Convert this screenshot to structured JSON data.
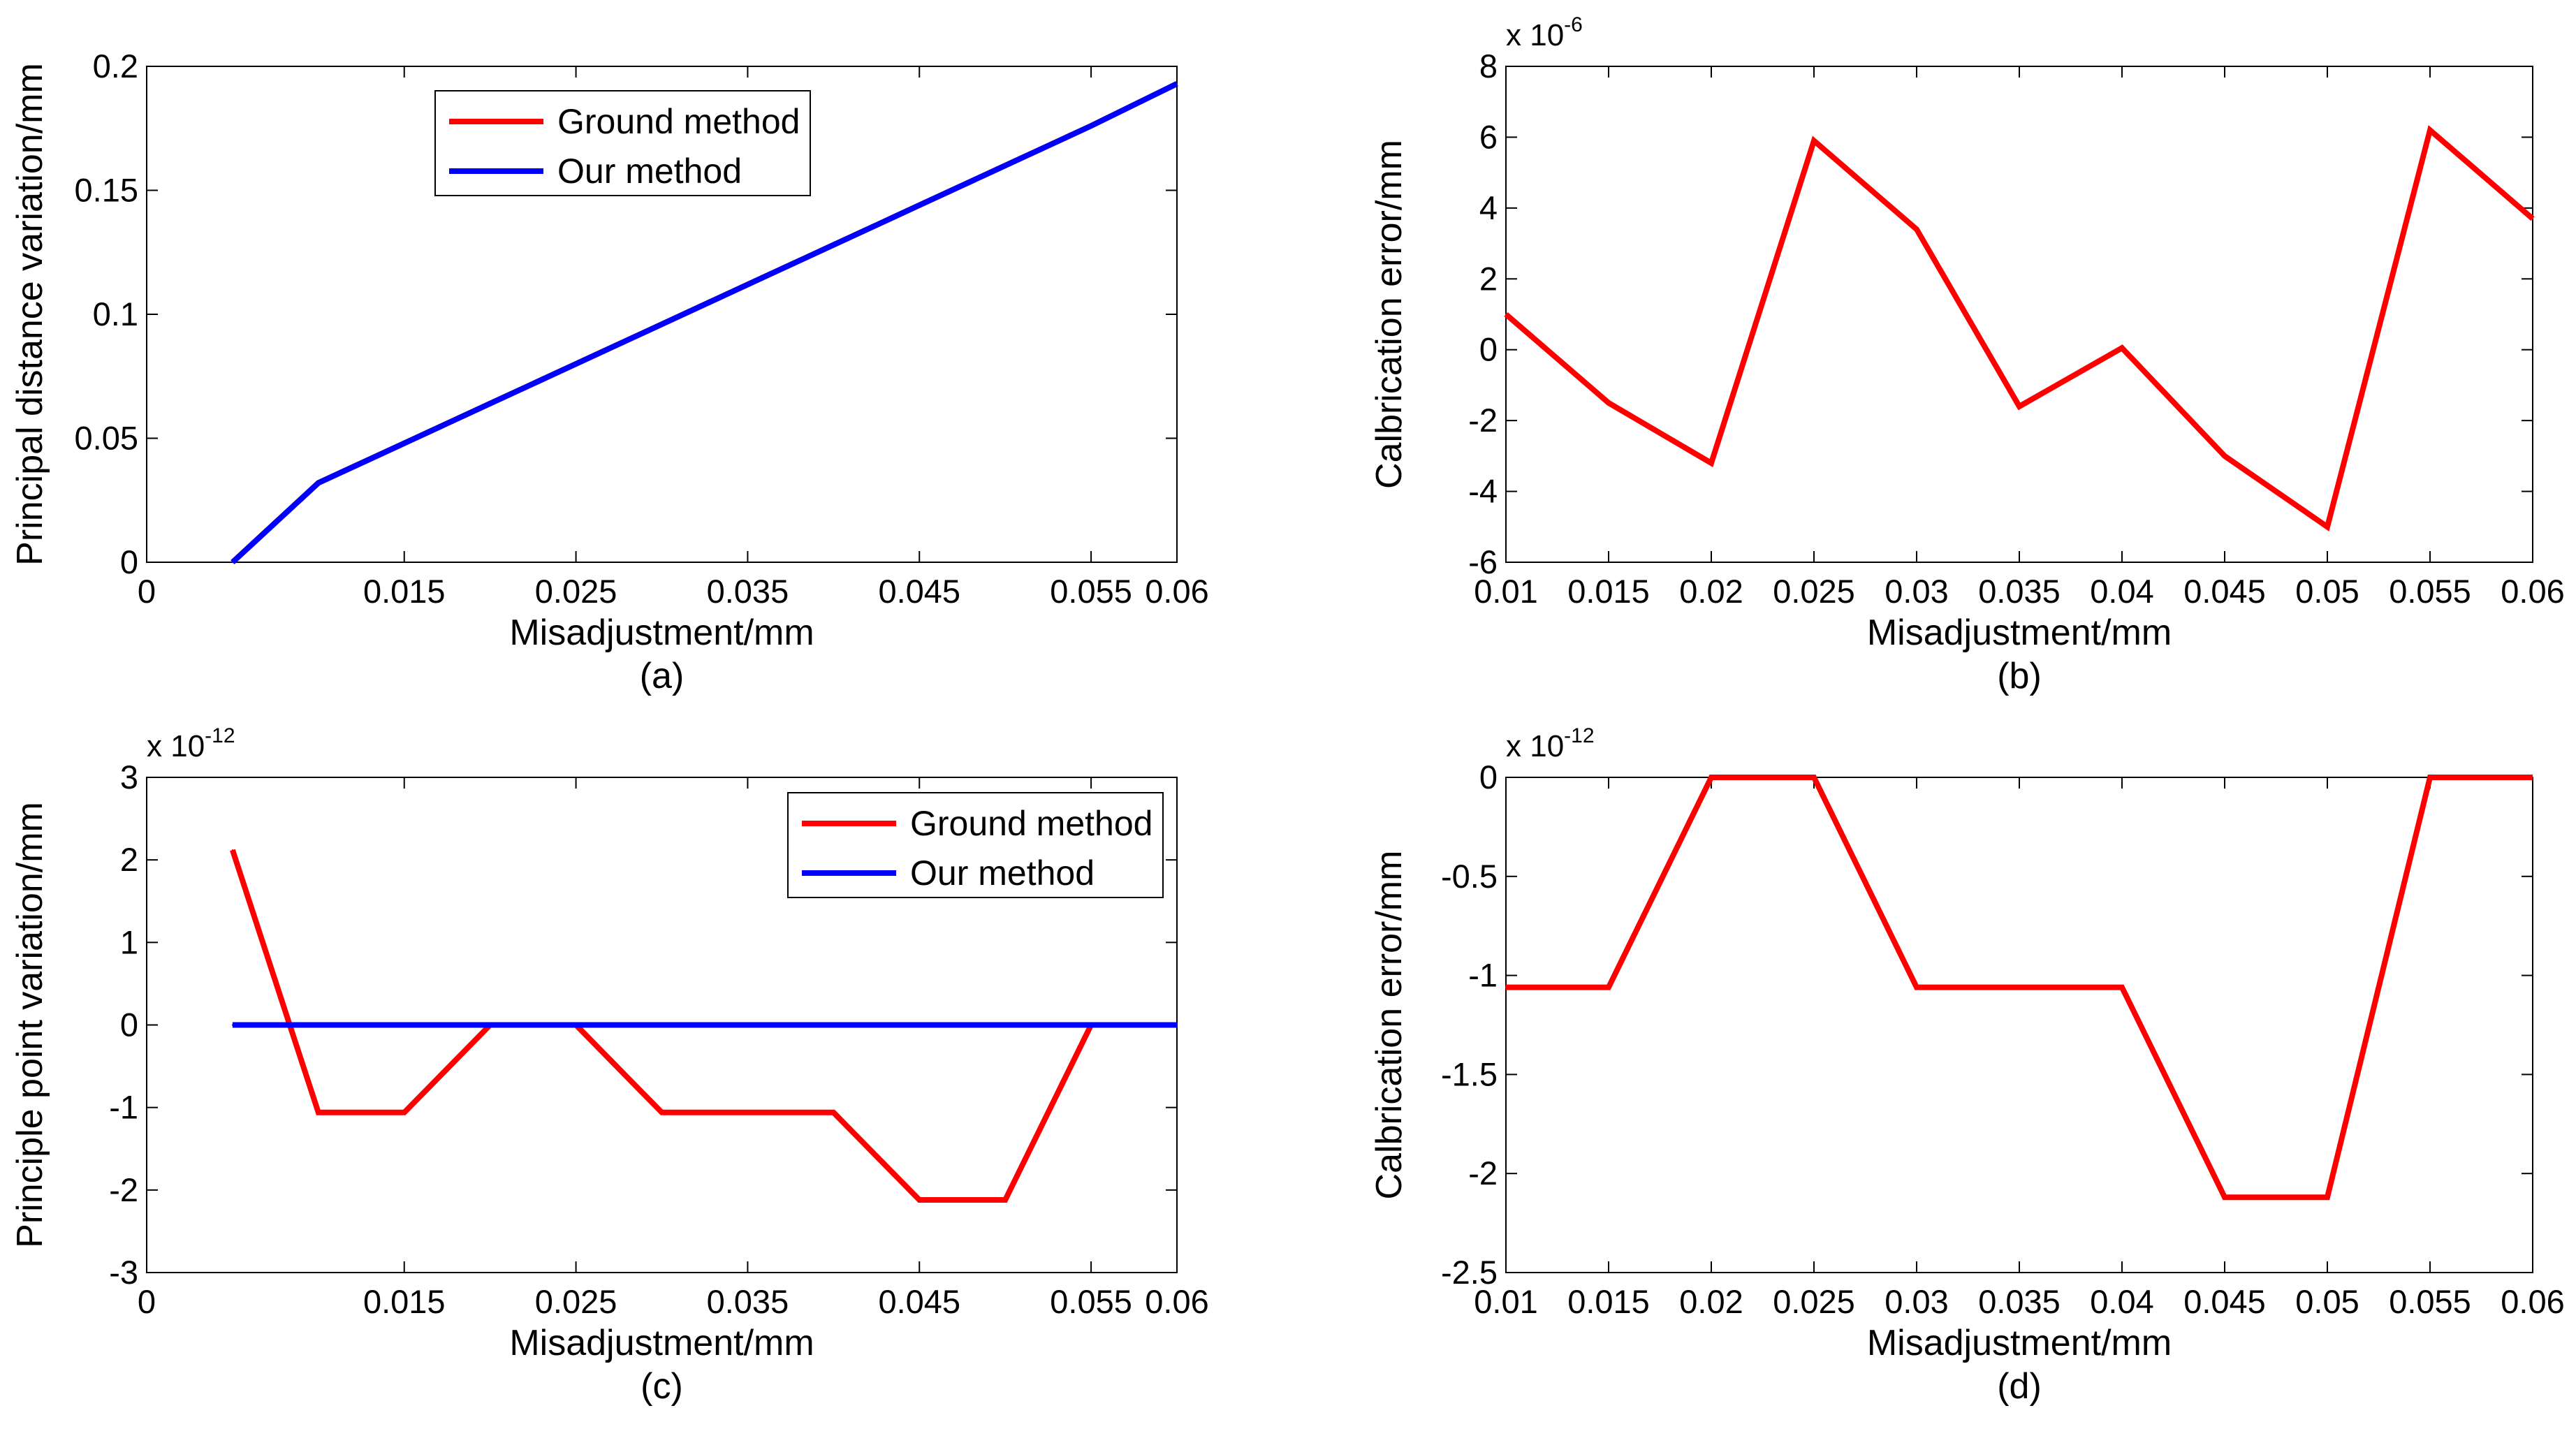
{
  "figure": {
    "panels": [
      "a",
      "b",
      "c",
      "d"
    ]
  },
  "chart_data": [
    {
      "id": "a",
      "type": "line",
      "caption": "(a)",
      "xlabel": "Misadjustment/mm",
      "ylabel": "Principal distance variation/mm",
      "xlim": [
        0,
        0.06
      ],
      "ylim": [
        0,
        0.2
      ],
      "xticks": [
        0,
        0.015,
        0.025,
        0.035,
        0.045,
        0.055,
        0.06
      ],
      "xtick_labels": [
        "0",
        "0.015",
        "0.025",
        "0.035",
        "0.045",
        "0.055",
        "0.06"
      ],
      "yticks": [
        0,
        0.05,
        0.1,
        0.15,
        0.2
      ],
      "ytick_labels": [
        "0",
        "0.05",
        "0.1",
        "0.15",
        "0.2"
      ],
      "exponent": null,
      "legend": {
        "position": "top-center",
        "entries": [
          "Ground method",
          "Our method"
        ]
      },
      "series": [
        {
          "name": "Ground method",
          "color": "#ff0000",
          "x": [
            0.005,
            0.01,
            0.015,
            0.02,
            0.025,
            0.03,
            0.035,
            0.04,
            0.045,
            0.05,
            0.055,
            0.06
          ],
          "y": [
            0,
            0.032,
            0.048,
            0.064,
            0.08,
            0.096,
            0.112,
            0.128,
            0.144,
            0.16,
            0.176,
            0.193
          ]
        },
        {
          "name": "Our method",
          "color": "#0000ff",
          "x": [
            0.005,
            0.01,
            0.015,
            0.02,
            0.025,
            0.03,
            0.035,
            0.04,
            0.045,
            0.05,
            0.055,
            0.06
          ],
          "y": [
            0,
            0.032,
            0.048,
            0.064,
            0.08,
            0.096,
            0.112,
            0.128,
            0.144,
            0.16,
            0.176,
            0.193
          ]
        }
      ]
    },
    {
      "id": "b",
      "type": "line",
      "caption": "(b)",
      "xlabel": "Misadjustment/mm",
      "ylabel": "Calbrication error/mm",
      "xlim": [
        0.01,
        0.06
      ],
      "ylim": [
        -6,
        8
      ],
      "xticks": [
        0.01,
        0.015,
        0.02,
        0.025,
        0.03,
        0.035,
        0.04,
        0.045,
        0.05,
        0.055,
        0.06
      ],
      "xtick_labels": [
        "0.01",
        "0.015",
        "0.02",
        "0.025",
        "0.03",
        "0.035",
        "0.04",
        "0.045",
        "0.05",
        "0.055",
        "0.06"
      ],
      "yticks": [
        -6,
        -4,
        -2,
        0,
        2,
        4,
        6,
        8
      ],
      "ytick_labels": [
        "-6",
        "-4",
        "-2",
        "0",
        "2",
        "4",
        "6",
        "8"
      ],
      "exponent": {
        "base": "x 10",
        "power": "-6"
      },
      "legend": null,
      "series": [
        {
          "name": "Calibration error",
          "color": "#ff0000",
          "x": [
            0.01,
            0.015,
            0.02,
            0.025,
            0.03,
            0.035,
            0.04,
            0.045,
            0.05,
            0.055,
            0.06
          ],
          "y": [
            1.0,
            -1.5,
            -3.2,
            5.9,
            3.4,
            -1.6,
            0.05,
            -3.0,
            -5.0,
            6.2,
            3.7
          ]
        }
      ]
    },
    {
      "id": "c",
      "type": "line",
      "caption": "(c)",
      "xlabel": "Misadjustment/mm",
      "ylabel": "Principle point variation/mm",
      "xlim": [
        0,
        0.06
      ],
      "ylim": [
        -3,
        3
      ],
      "xticks": [
        0,
        0.015,
        0.025,
        0.035,
        0.045,
        0.055,
        0.06
      ],
      "xtick_labels": [
        "0",
        "0.015",
        "0.025",
        "0.035",
        "0.045",
        "0.055",
        "0.06"
      ],
      "yticks": [
        -3,
        -2,
        -1,
        0,
        1,
        2,
        3
      ],
      "ytick_labels": [
        "-3",
        "-2",
        "-1",
        "0",
        "1",
        "2",
        "3"
      ],
      "exponent": {
        "base": "x 10",
        "power": "-12"
      },
      "legend": {
        "position": "top-right",
        "entries": [
          "Ground method",
          "Our method"
        ]
      },
      "series": [
        {
          "name": "Ground method",
          "color": "#ff0000",
          "x": [
            0.005,
            0.01,
            0.015,
            0.02,
            0.025,
            0.03,
            0.035,
            0.04,
            0.045,
            0.05,
            0.055
          ],
          "y": [
            2.12,
            -1.06,
            -1.06,
            0,
            0,
            -1.06,
            -1.06,
            -1.06,
            -2.12,
            -2.12,
            0
          ]
        },
        {
          "name": "Our method",
          "color": "#0000ff",
          "x": [
            0.005,
            0.06
          ],
          "y": [
            0,
            0
          ]
        }
      ]
    },
    {
      "id": "d",
      "type": "line",
      "caption": "(d)",
      "xlabel": "Misadjustment/mm",
      "ylabel": "Calbrication error/mm",
      "xlim": [
        0.01,
        0.06
      ],
      "ylim": [
        -2.5,
        0
      ],
      "xticks": [
        0.01,
        0.015,
        0.02,
        0.025,
        0.03,
        0.035,
        0.04,
        0.045,
        0.05,
        0.055,
        0.06
      ],
      "xtick_labels": [
        "0.01",
        "0.015",
        "0.02",
        "0.025",
        "0.03",
        "0.035",
        "0.04",
        "0.045",
        "0.05",
        "0.055",
        "0.06"
      ],
      "yticks": [
        -2.5,
        -2,
        -1.5,
        -1,
        -0.5,
        0
      ],
      "ytick_labels": [
        "-2.5",
        "-2",
        "-1.5",
        "-1",
        "-0.5",
        "0"
      ],
      "exponent": {
        "base": "x 10",
        "power": "-12"
      },
      "legend": null,
      "series": [
        {
          "name": "Calibration error",
          "color": "#ff0000",
          "x": [
            0.01,
            0.015,
            0.02,
            0.025,
            0.03,
            0.035,
            0.04,
            0.045,
            0.05,
            0.055,
            0.06
          ],
          "y": [
            -1.06,
            -1.06,
            0,
            0,
            -1.06,
            -1.06,
            -1.06,
            -2.12,
            -2.12,
            0,
            0
          ]
        }
      ]
    }
  ]
}
